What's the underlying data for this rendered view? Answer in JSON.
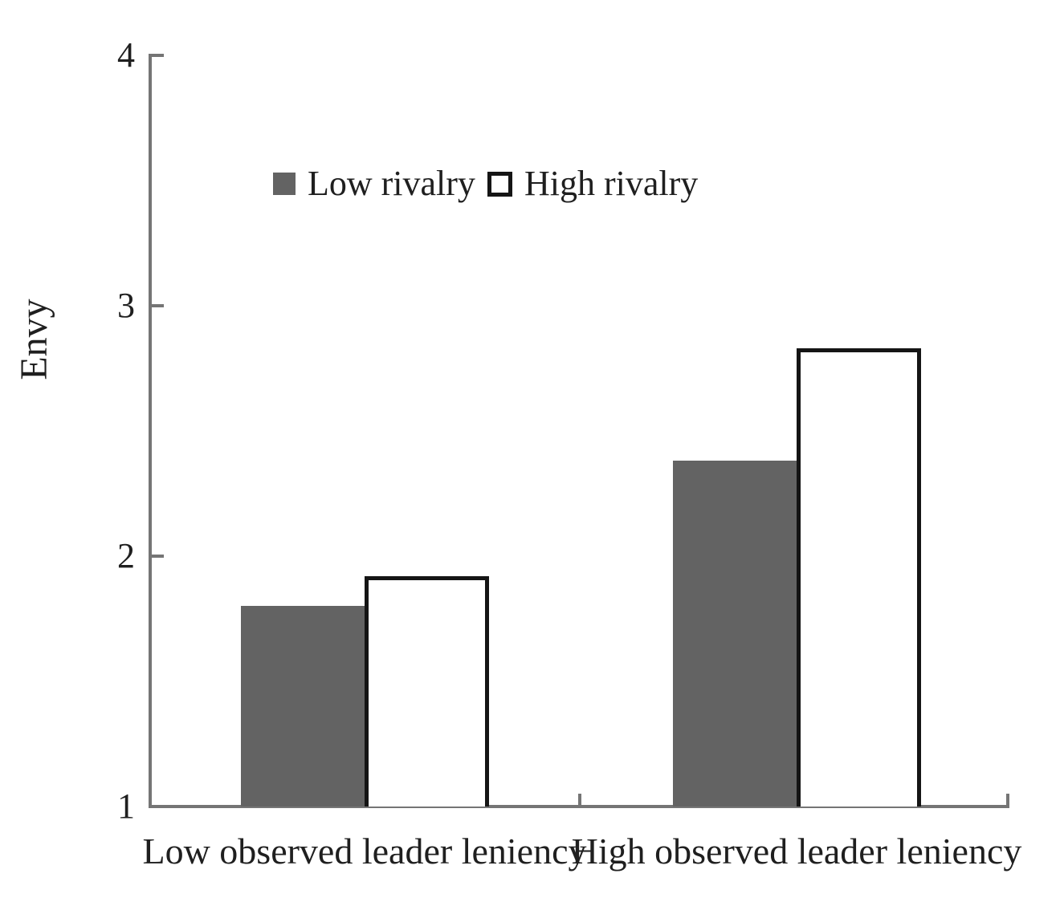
{
  "chart_data": {
    "type": "bar",
    "title": "",
    "xlabel": "",
    "ylabel": "Envy",
    "ylim": [
      1,
      4
    ],
    "yticks": [
      1,
      2,
      3,
      4
    ],
    "grid": false,
    "legend_position": "inside-top-left",
    "categories": [
      "Low observed leader leniency",
      "High observed leader leniency"
    ],
    "series": [
      {
        "name": "Low rivalry",
        "values": [
          1.8,
          2.38
        ],
        "fill": "#636363",
        "border": null
      },
      {
        "name": "High rivalry",
        "values": [
          1.92,
          2.83
        ],
        "fill": "#ffffff",
        "border": "#151515"
      }
    ]
  },
  "colors": {
    "axis": "#757575",
    "text": "#1f1f1f",
    "background": "#ffffff",
    "gray_bar": "#636363",
    "bar_outline": "#151515"
  }
}
